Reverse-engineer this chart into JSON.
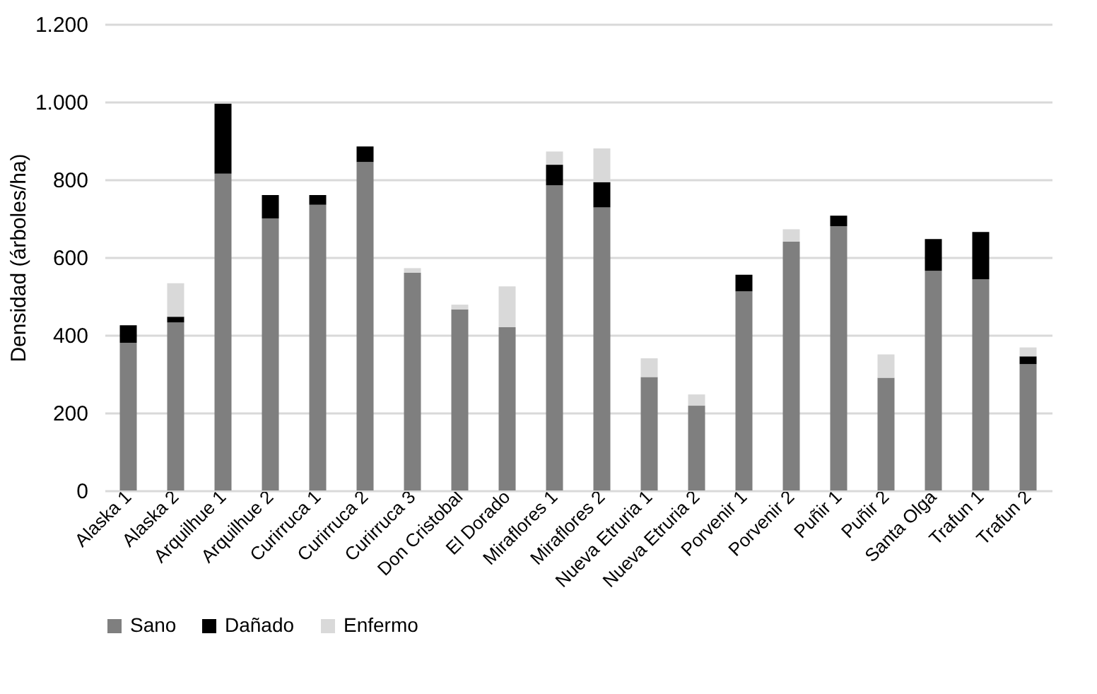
{
  "chart_data": {
    "type": "bar",
    "stacked": true,
    "ylabel": "Densidad (árboles/ha)",
    "categories": [
      "Alaska 1",
      "Alaska 2",
      "Arquilhue 1",
      "Arquilhue 2",
      "Curirruca 1",
      "Curirruca 2",
      "Curirruca 3",
      "Don Cristobal",
      "El Dorado",
      "Miraflores 1",
      "Miraflores 2",
      "Nueva Etruria 1",
      "Nueva Etruria 2",
      "Porvenir 1",
      "Porvenir 2",
      "Puñir 1",
      "Puñir 2",
      "Santa Olga",
      "Trafun 1",
      "Trafun 2"
    ],
    "series": [
      {
        "name": "Sano",
        "color": "#7f7f7f",
        "values": [
          380,
          432,
          815,
          700,
          735,
          845,
          560,
          466,
          420,
          785,
          728,
          292,
          218,
          512,
          640,
          680,
          290,
          565,
          543,
          325
        ]
      },
      {
        "name": "Dañado",
        "color": "#000000",
        "values": [
          45,
          15,
          180,
          60,
          25,
          40,
          null,
          null,
          null,
          53,
          65,
          null,
          null,
          43,
          null,
          27,
          null,
          82,
          122,
          20
        ]
      },
      {
        "name": "Enfermo",
        "color": "#d9d9d9",
        "values": [
          null,
          86,
          null,
          null,
          null,
          null,
          12,
          12,
          105,
          34,
          87,
          48,
          29,
          null,
          32,
          null,
          60,
          null,
          null,
          23
        ]
      }
    ],
    "ylim": [
      0,
      1200
    ],
    "yticks": [
      0,
      200,
      400,
      600,
      800,
      {
        "value": 1000,
        "label": "1.000"
      },
      {
        "value": 1200,
        "label": "1.200"
      }
    ],
    "grid": "y",
    "legend": "bottom"
  }
}
